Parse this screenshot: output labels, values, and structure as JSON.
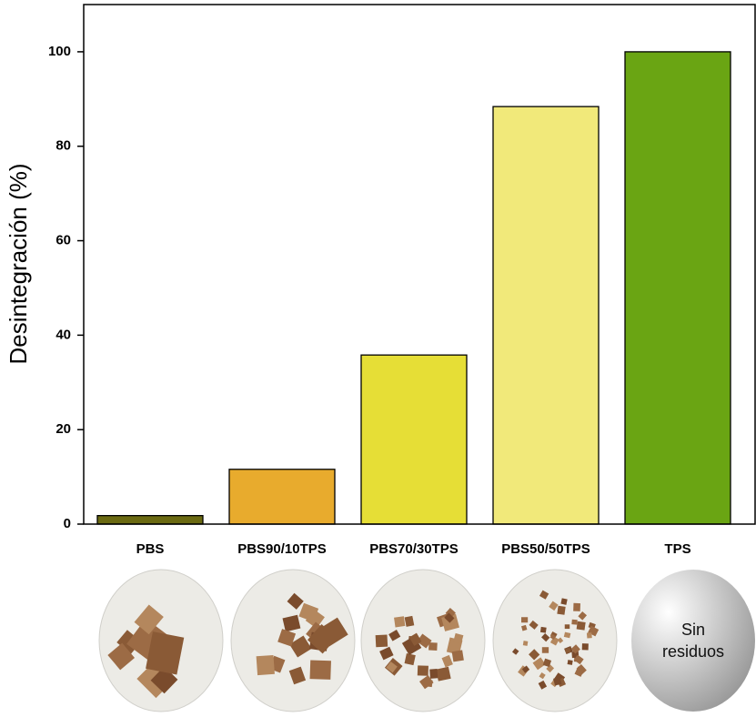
{
  "chart_data": {
    "type": "bar",
    "y_label": "Desintegración (%)",
    "categories": [
      "PBS",
      "PBS90/10TPS",
      "PBS70/30TPS",
      "PBS50/50TPS",
      "TPS"
    ],
    "values": [
      1.8,
      11.6,
      35.8,
      88.4,
      100
    ],
    "colors": [
      "#6b6a12",
      "#e8ab2d",
      "#e6de36",
      "#f1e97a",
      "#6aa513"
    ],
    "ylim": [
      0,
      110
    ],
    "yticks": [
      0,
      20,
      40,
      60,
      80,
      100
    ],
    "annotation": "Sin residuos"
  }
}
